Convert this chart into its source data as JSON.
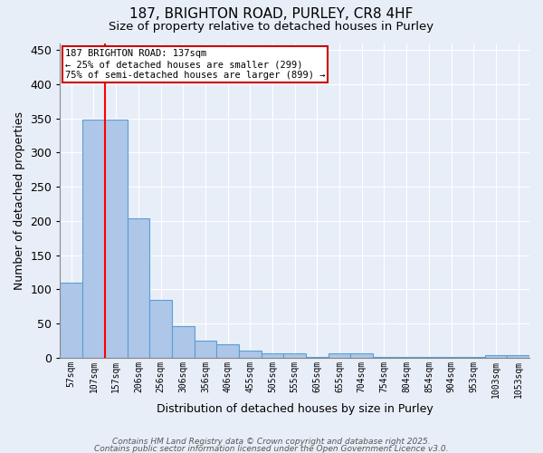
{
  "title1": "187, BRIGHTON ROAD, PURLEY, CR8 4HF",
  "title2": "Size of property relative to detached houses in Purley",
  "xlabel": "Distribution of detached houses by size in Purley",
  "ylabel": "Number of detached properties",
  "categories": [
    "57sqm",
    "107sqm",
    "157sqm",
    "206sqm",
    "256sqm",
    "306sqm",
    "356sqm",
    "406sqm",
    "455sqm",
    "505sqm",
    "555sqm",
    "605sqm",
    "655sqm",
    "704sqm",
    "754sqm",
    "804sqm",
    "854sqm",
    "904sqm",
    "953sqm",
    "1003sqm",
    "1053sqm"
  ],
  "bar_heights": [
    110,
    348,
    348,
    204,
    85,
    47,
    25,
    20,
    10,
    7,
    7,
    2,
    7,
    7,
    2,
    2,
    2,
    2,
    2,
    4,
    4
  ],
  "bar_color": "#aec6e8",
  "bar_edge_color": "#5a9fd4",
  "background_color": "#e8eef8",
  "grid_color": "#ffffff",
  "red_line_index": 2,
  "annotation_text": "187 BRIGHTON ROAD: 137sqm\n← 25% of detached houses are smaller (299)\n75% of semi-detached houses are larger (899) →",
  "annotation_box_color": "#ffffff",
  "annotation_border_color": "#cc0000",
  "ylim": [
    0,
    460
  ],
  "yticks": [
    0,
    50,
    100,
    150,
    200,
    250,
    300,
    350,
    400,
    450
  ],
  "footer1": "Contains HM Land Registry data © Crown copyright and database right 2025.",
  "footer2": "Contains public sector information licensed under the Open Government Licence v3.0."
}
